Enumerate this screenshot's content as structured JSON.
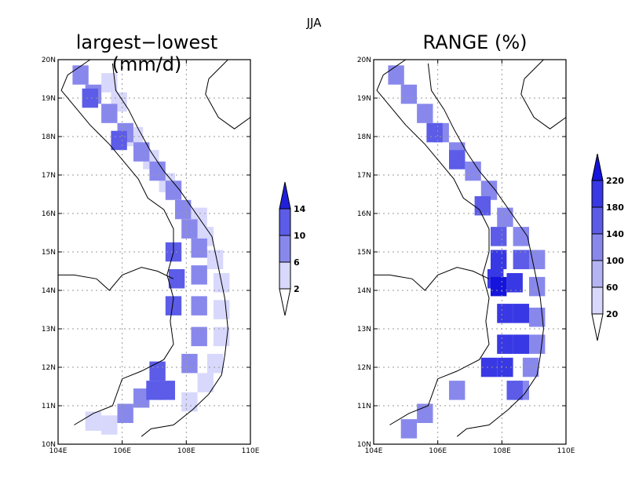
{
  "figure": {
    "season": "JJA",
    "left_title": "largest−lowest (mm/d)",
    "right_title": "RANGE (%)"
  },
  "axes": {
    "lon_labels": [
      "104E",
      "106E",
      "108E",
      "110E"
    ],
    "lat_labels": [
      "10N",
      "11N",
      "12N",
      "13N",
      "14N",
      "15N",
      "16N",
      "17N",
      "18N",
      "19N",
      "20N"
    ],
    "lon_range": [
      104,
      110
    ],
    "lat_range": [
      10,
      20
    ],
    "grid": "dotted"
  },
  "colors": {
    "shade_1": "#d8d8fc",
    "shade_2": "#b4b4f4",
    "shade_3": "#8888ec",
    "shade_4": "#5c5ce8",
    "shade_5": "#3838e4",
    "shade_6": "#1414dc"
  },
  "chart_data": [
    {
      "type": "heatmap",
      "title": "largest−lowest (mm/d)",
      "colorbar_levels": [
        "2",
        "6",
        "10",
        "14"
      ],
      "colorbar_colors": [
        "#ffffff",
        "#d8d8fc",
        "#8888ec",
        "#5c5ce8",
        "#2020dc"
      ],
      "colorbar_range": [
        2,
        14
      ],
      "cell_size_deg": 0.25,
      "cells": [
        [
          "2-6",
          105.6,
          19.4
        ],
        [
          "2-6",
          105.9,
          18.9
        ],
        [
          "2-6",
          106.4,
          18.0
        ],
        [
          "2-6",
          106.9,
          17.4
        ],
        [
          "2-6",
          107.4,
          16.8
        ],
        [
          "2-6",
          108.4,
          15.9
        ],
        [
          "2-6",
          108.6,
          15.4
        ],
        [
          "2-6",
          108.9,
          14.8
        ],
        [
          "2-6",
          109.1,
          14.2
        ],
        [
          "2-6",
          109.1,
          13.5
        ],
        [
          "2-6",
          109.1,
          12.8
        ],
        [
          "2-6",
          108.9,
          12.1
        ],
        [
          "2-6",
          108.6,
          11.6
        ],
        [
          "2-6",
          108.1,
          11.1
        ],
        [
          "2-6",
          105.1,
          10.6
        ],
        [
          "2-6",
          105.6,
          10.5
        ],
        [
          "6-10",
          104.7,
          19.6
        ],
        [
          "6-10",
          105.1,
          19.1
        ],
        [
          "6-10",
          105.6,
          18.6
        ],
        [
          "6-10",
          106.1,
          18.1
        ],
        [
          "6-10",
          106.6,
          17.6
        ],
        [
          "6-10",
          107.1,
          17.1
        ],
        [
          "6-10",
          107.6,
          16.6
        ],
        [
          "6-10",
          107.9,
          16.1
        ],
        [
          "6-10",
          108.1,
          15.6
        ],
        [
          "6-10",
          108.4,
          15.1
        ],
        [
          "6-10",
          108.4,
          14.4
        ],
        [
          "6-10",
          108.4,
          13.6
        ],
        [
          "6-10",
          108.4,
          12.8
        ],
        [
          "6-10",
          108.1,
          12.1
        ],
        [
          "6-10",
          106.6,
          11.2
        ],
        [
          "6-10",
          106.1,
          10.8
        ],
        [
          "10-14",
          105.0,
          19.0
        ],
        [
          "10-14",
          105.9,
          17.9
        ],
        [
          "10-14",
          107.6,
          15.0
        ],
        [
          "10-14",
          107.7,
          14.3
        ],
        [
          "10-14",
          107.6,
          13.6
        ],
        [
          "10-14",
          107.1,
          11.9
        ],
        [
          "10-14",
          107.4,
          11.4
        ],
        [
          "10-14",
          107.0,
          11.4
        ]
      ]
    },
    {
      "type": "heatmap",
      "title": "RANGE (%)",
      "colorbar_levels": [
        "20",
        "60",
        "100",
        "140",
        "180",
        "220"
      ],
      "colorbar_colors": [
        "#ffffff",
        "#d8d8fc",
        "#b4b4f4",
        "#8888ec",
        "#5c5ce8",
        "#3838e4",
        "#1414dc"
      ],
      "colorbar_range": [
        20,
        220
      ],
      "cell_size_deg": 0.25,
      "cells": [
        [
          "100-140",
          104.7,
          19.6
        ],
        [
          "100-140",
          105.1,
          19.1
        ],
        [
          "100-140",
          105.6,
          18.6
        ],
        [
          "100-140",
          106.1,
          18.1
        ],
        [
          "100-140",
          106.6,
          17.6
        ],
        [
          "100-140",
          107.1,
          17.1
        ],
        [
          "100-140",
          107.6,
          16.6
        ],
        [
          "100-140",
          108.1,
          15.9
        ],
        [
          "100-140",
          108.6,
          15.4
        ],
        [
          "100-140",
          109.1,
          14.8
        ],
        [
          "100-140",
          109.1,
          14.1
        ],
        [
          "100-140",
          109.1,
          13.3
        ],
        [
          "100-140",
          109.1,
          12.6
        ],
        [
          "100-140",
          108.9,
          12.0
        ],
        [
          "100-140",
          108.6,
          11.4
        ],
        [
          "100-140",
          106.6,
          11.4
        ],
        [
          "100-140",
          105.6,
          10.8
        ],
        [
          "100-140",
          105.1,
          10.4
        ],
        [
          "140-180",
          105.9,
          18.1
        ],
        [
          "140-180",
          106.6,
          17.4
        ],
        [
          "140-180",
          107.4,
          16.2
        ],
        [
          "140-180",
          107.9,
          15.4
        ],
        [
          "140-180",
          108.6,
          14.8
        ],
        [
          "140-180",
          108.4,
          11.4
        ],
        [
          "180-220",
          107.9,
          14.8
        ],
        [
          "180-220",
          108.4,
          14.2
        ],
        [
          "180-220",
          108.1,
          13.4
        ],
        [
          "180-220",
          108.6,
          13.4
        ],
        [
          "180-220",
          108.1,
          12.6
        ],
        [
          "180-220",
          108.6,
          12.6
        ],
        [
          "180-220",
          107.6,
          12.0
        ],
        [
          "180-220",
          108.1,
          12.0
        ],
        [
          "180-220",
          107.8,
          14.3
        ],
        [
          ">220",
          107.9,
          14.1
        ]
      ]
    }
  ]
}
